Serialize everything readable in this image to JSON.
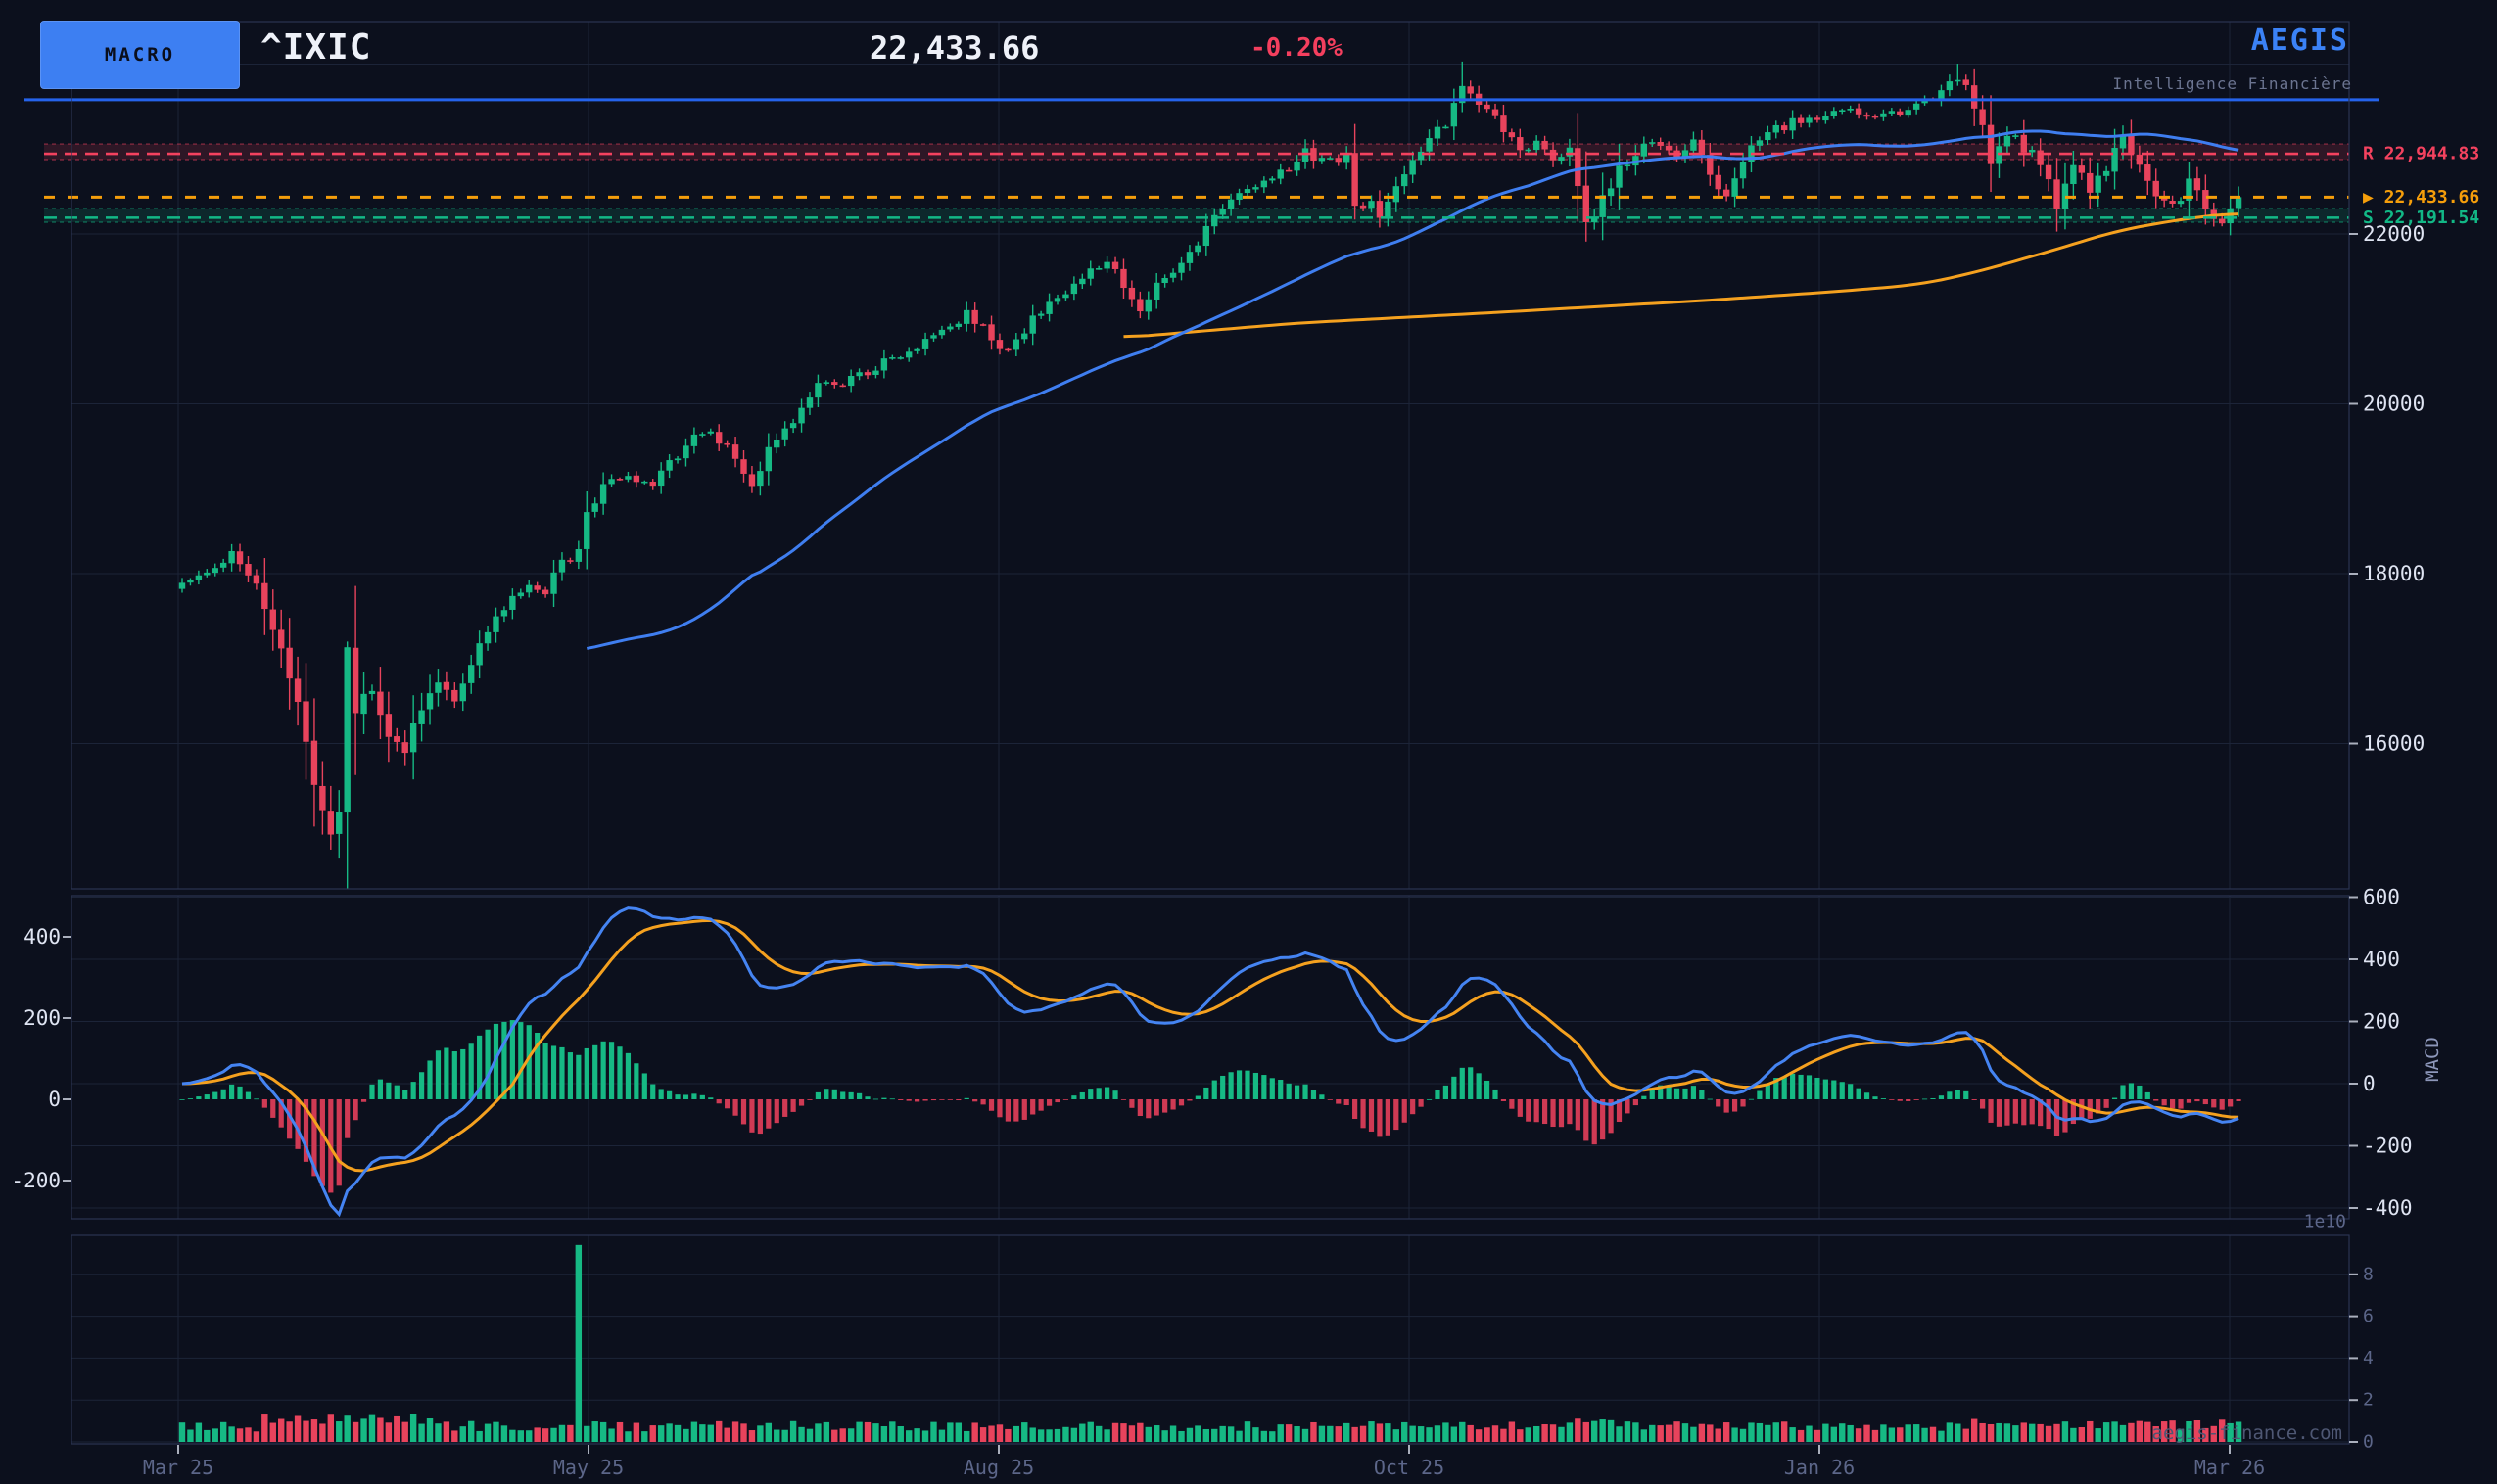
{
  "header": {
    "macro_button": "MACRO",
    "symbol": "^IXIC",
    "price": "22,433.66",
    "change_pct": "-0.20%",
    "brand": "AEGIS",
    "brand_subtitle": "Intelligence Financière"
  },
  "watermark": "aegis-finance.com",
  "colors": {
    "background": "#0c101d",
    "bullish": "#16b984",
    "bearish": "#e8435c",
    "hist_up": "#16b984",
    "hist_down": "#cf3a54",
    "ma_fast": "#3f7ef0",
    "ma_slow": "#f5a11f",
    "macd_line": "#4584f2",
    "macd_signal": "#f5a11f",
    "prior_high_line": "#2563eb",
    "resistance": "#f4425f",
    "support": "#12b886",
    "current": "#f59e0b",
    "grid": "#1c2438",
    "frame": "#2a3452",
    "label_bright": "#dfe4f2",
    "label_dim": "#5c6689",
    "macd_axis_label": "#8d97ba",
    "watermark": "#4e5773"
  },
  "chart_data": {
    "type": "candlestick",
    "symbol": "^IXIC",
    "last_price": 22433.66,
    "change_pct": -0.2,
    "days": 250,
    "x_ticks": [
      "Mar 25",
      "May 25",
      "Aug 25",
      "Oct 25",
      "Jan 26",
      "Mar 26"
    ],
    "price_pane": {
      "y_ticks": [
        16000,
        18000,
        20000,
        22000
      ],
      "unlabeled_grid": [
        24000
      ],
      "levels": {
        "resistance": {
          "prefix": "R",
          "value": 22944.83,
          "display": "R  22,944.83",
          "band": [
            22876,
            23060
          ]
        },
        "current": {
          "marker": "▶",
          "value": 22433.66,
          "display": "▶ 22,433.66"
        },
        "support": {
          "prefix": "S",
          "value": 22191.54,
          "display": "S  22,191.54",
          "band": [
            22138,
            22300
          ]
        },
        "prior_high": 23580
      },
      "close_anchors": [
        [
          0,
          17850
        ],
        [
          3,
          18020
        ],
        [
          6,
          18250
        ],
        [
          9,
          17900
        ],
        [
          12,
          17150
        ],
        [
          14,
          16400
        ],
        [
          16,
          15600
        ],
        [
          18,
          14990
        ],
        [
          19,
          15270
        ],
        [
          20,
          17120
        ],
        [
          21,
          16390
        ],
        [
          23,
          16720
        ],
        [
          25,
          16150
        ],
        [
          27,
          15950
        ],
        [
          29,
          16400
        ],
        [
          31,
          16700
        ],
        [
          33,
          16500
        ],
        [
          36,
          17150
        ],
        [
          39,
          17600
        ],
        [
          42,
          17900
        ],
        [
          44,
          17780
        ],
        [
          46,
          18150
        ],
        [
          47,
          18100
        ],
        [
          48,
          18250
        ],
        [
          49,
          18700
        ],
        [
          51,
          19050
        ],
        [
          54,
          19150
        ],
        [
          57,
          19050
        ],
        [
          60,
          19400
        ],
        [
          63,
          19700
        ],
        [
          66,
          19500
        ],
        [
          69,
          19000
        ],
        [
          71,
          19450
        ],
        [
          74,
          19800
        ],
        [
          77,
          20200
        ],
        [
          80,
          20250
        ],
        [
          83,
          20350
        ],
        [
          86,
          20550
        ],
        [
          89,
          20700
        ],
        [
          92,
          20870
        ],
        [
          95,
          21050
        ],
        [
          98,
          20800
        ],
        [
          100,
          20600
        ],
        [
          103,
          21000
        ],
        [
          106,
          21250
        ],
        [
          109,
          21500
        ],
        [
          112,
          21700
        ],
        [
          114,
          21350
        ],
        [
          116,
          21050
        ],
        [
          118,
          21400
        ],
        [
          121,
          21600
        ],
        [
          124,
          22050
        ],
        [
          127,
          22450
        ],
        [
          130,
          22600
        ],
        [
          133,
          22700
        ],
        [
          136,
          22950
        ],
        [
          139,
          22850
        ],
        [
          141,
          22900
        ],
        [
          142,
          22300
        ],
        [
          144,
          22400
        ],
        [
          145,
          22250
        ],
        [
          147,
          22600
        ],
        [
          149,
          22850
        ],
        [
          151,
          23100
        ],
        [
          153,
          23300
        ],
        [
          155,
          23700
        ],
        [
          157,
          23550
        ],
        [
          159,
          23400
        ],
        [
          160,
          23150
        ],
        [
          162,
          23000
        ],
        [
          164,
          23100
        ],
        [
          166,
          22850
        ],
        [
          168,
          23000
        ],
        [
          170,
          22070
        ],
        [
          171,
          22150
        ],
        [
          173,
          22600
        ],
        [
          175,
          22850
        ],
        [
          177,
          23050
        ],
        [
          179,
          23100
        ],
        [
          181,
          22900
        ],
        [
          183,
          23050
        ],
        [
          185,
          22700
        ],
        [
          187,
          22450
        ],
        [
          189,
          22900
        ],
        [
          191,
          23100
        ],
        [
          193,
          23250
        ],
        [
          195,
          23300
        ],
        [
          198,
          23350
        ],
        [
          201,
          23450
        ],
        [
          204,
          23380
        ],
        [
          207,
          23450
        ],
        [
          210,
          23500
        ],
        [
          213,
          23650
        ],
        [
          215,
          23850
        ],
        [
          217,
          23500
        ],
        [
          219,
          22900
        ],
        [
          221,
          23200
        ],
        [
          223,
          23000
        ],
        [
          225,
          22850
        ],
        [
          226,
          22600
        ],
        [
          227,
          22300
        ],
        [
          229,
          22850
        ],
        [
          231,
          22550
        ],
        [
          233,
          22750
        ],
        [
          235,
          23150
        ],
        [
          237,
          22800
        ],
        [
          239,
          22450
        ],
        [
          241,
          22300
        ],
        [
          243,
          22600
        ],
        [
          245,
          22350
        ],
        [
          247,
          22130
        ],
        [
          248,
          22350
        ],
        [
          249,
          22433.66
        ]
      ],
      "wick_overrides": {
        "18": {
          "low": 14750
        },
        "20": {
          "high": 17200
        },
        "142": {
          "low": 22170
        },
        "155": {
          "high": 24030
        },
        "170": {
          "low": 21910
        },
        "215": {
          "high": 24005
        },
        "247": {
          "low": 22090
        }
      },
      "volatility_zones": [
        {
          "from": 10,
          "to": 32,
          "mult": 2.2
        },
        {
          "from": 168,
          "to": 176,
          "mult": 1.7
        },
        {
          "from": 215,
          "to": 249,
          "mult": 1.35
        }
      ],
      "ma_fast": {
        "type": "SMA",
        "window": 50
      },
      "ma_slow_anchors": [
        [
          114,
          20780
        ],
        [
          135,
          20950
        ],
        [
          160,
          21080
        ],
        [
          185,
          21220
        ],
        [
          200,
          21320
        ],
        [
          210,
          21400
        ],
        [
          216,
          21520
        ],
        [
          222,
          21680
        ],
        [
          228,
          21850
        ],
        [
          234,
          22030
        ],
        [
          240,
          22140
        ],
        [
          245,
          22210
        ],
        [
          249,
          22250
        ]
      ]
    },
    "macd_pane": {
      "axis_label": "MACD",
      "left_ticks": [
        400,
        200,
        0,
        -200
      ],
      "right_ticks": [
        600,
        400,
        200,
        0,
        -200,
        -400
      ],
      "fast": 12,
      "slow": 26,
      "signal": 9,
      "line_scale_range": [
        -420,
        565
      ],
      "hist_scale_range": [
        -230,
        195
      ]
    },
    "volume_pane": {
      "ticks_e10": [
        0,
        2,
        4,
        6,
        8
      ],
      "offset_label": "1e10",
      "spike": {
        "day": 48,
        "value_e10": 9.4
      }
    }
  }
}
